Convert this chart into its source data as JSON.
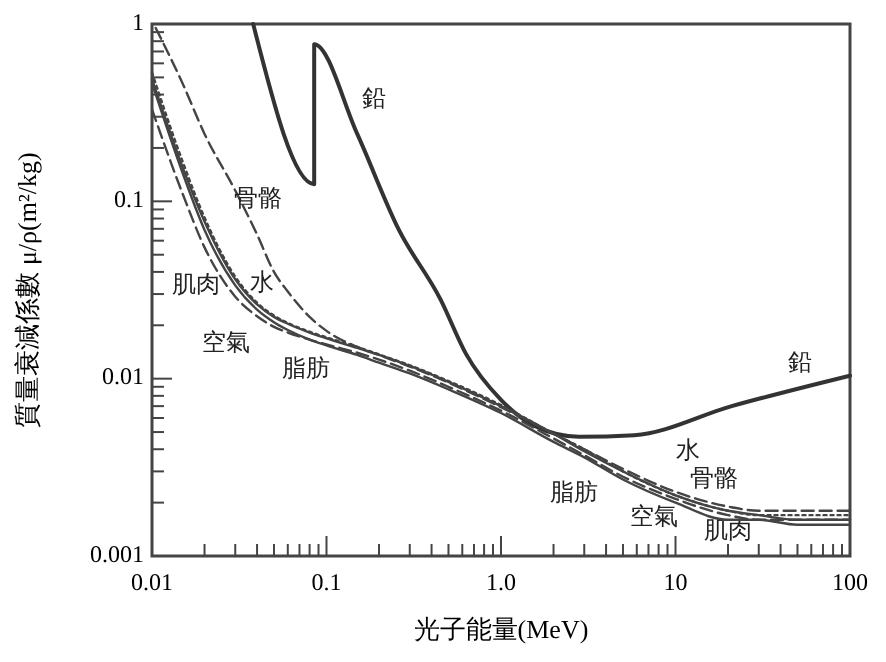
{
  "chart_data": {
    "type": "line",
    "xlabel": "光子能量(MeV)",
    "ylabel": "質量衰減係數 μ/ρ(m²/kg)",
    "log": "xy",
    "grid": false,
    "marker": "none",
    "xlim": [
      0.01,
      100
    ],
    "ylim": [
      0.001,
      1
    ],
    "xticks": [
      {
        "value": 0.01,
        "label": "0.01"
      },
      {
        "value": 0.02,
        "label": null
      },
      {
        "value": 0.03,
        "label": null
      },
      {
        "value": 0.04,
        "label": null
      },
      {
        "value": 0.05,
        "label": null
      },
      {
        "value": 0.06,
        "label": null
      },
      {
        "value": 0.07,
        "label": null
      },
      {
        "value": 0.08,
        "label": null
      },
      {
        "value": 0.09,
        "label": null
      },
      {
        "value": 0.1,
        "label": "0.1"
      },
      {
        "value": 0.2,
        "label": null
      },
      {
        "value": 0.3,
        "label": null
      },
      {
        "value": 0.4,
        "label": null
      },
      {
        "value": 0.5,
        "label": null
      },
      {
        "value": 0.6,
        "label": null
      },
      {
        "value": 0.7,
        "label": null
      },
      {
        "value": 0.8,
        "label": null
      },
      {
        "value": 0.9,
        "label": null
      },
      {
        "value": 1,
        "label": "1.0"
      },
      {
        "value": 2,
        "label": null
      },
      {
        "value": 3,
        "label": null
      },
      {
        "value": 4,
        "label": null
      },
      {
        "value": 5,
        "label": null
      },
      {
        "value": 6,
        "label": null
      },
      {
        "value": 7,
        "label": null
      },
      {
        "value": 8,
        "label": null
      },
      {
        "value": 9,
        "label": null
      },
      {
        "value": 10,
        "label": "10"
      },
      {
        "value": 20,
        "label": null
      },
      {
        "value": 30,
        "label": null
      },
      {
        "value": 40,
        "label": null
      },
      {
        "value": 50,
        "label": null
      },
      {
        "value": 60,
        "label": null
      },
      {
        "value": 70,
        "label": null
      },
      {
        "value": 80,
        "label": null
      },
      {
        "value": 90,
        "label": null
      },
      {
        "value": 100,
        "label": "100"
      }
    ],
    "yticks": [
      {
        "value": 0.001,
        "label": "0.001"
      },
      {
        "value": 0.002,
        "label": null
      },
      {
        "value": 0.003,
        "label": null
      },
      {
        "value": 0.004,
        "label": null
      },
      {
        "value": 0.005,
        "label": null
      },
      {
        "value": 0.006,
        "label": null
      },
      {
        "value": 0.007,
        "label": null
      },
      {
        "value": 0.008,
        "label": null
      },
      {
        "value": 0.009,
        "label": null
      },
      {
        "value": 0.01,
        "label": "0.01"
      },
      {
        "value": 0.02,
        "label": null
      },
      {
        "value": 0.03,
        "label": null
      },
      {
        "value": 0.04,
        "label": null
      },
      {
        "value": 0.05,
        "label": null
      },
      {
        "value": 0.06,
        "label": null
      },
      {
        "value": 0.07,
        "label": null
      },
      {
        "value": 0.08,
        "label": null
      },
      {
        "value": 0.09,
        "label": null
      },
      {
        "value": 0.1,
        "label": "0.1"
      },
      {
        "value": 0.2,
        "label": null
      },
      {
        "value": 0.3,
        "label": null
      },
      {
        "value": 0.4,
        "label": null
      },
      {
        "value": 0.5,
        "label": null
      },
      {
        "value": 0.6,
        "label": null
      },
      {
        "value": 0.7,
        "label": null
      },
      {
        "value": 0.8,
        "label": null
      },
      {
        "value": 0.9,
        "label": null
      },
      {
        "value": 1,
        "label": "1"
      }
    ],
    "x": [
      0.01,
      0.015,
      0.02,
      0.03,
      0.04,
      0.05,
      0.06,
      0.08,
      0.1,
      0.15,
      0.2,
      0.3,
      0.5,
      1,
      2,
      3,
      5,
      10,
      20,
      30,
      50,
      100
    ],
    "series": [
      {
        "name": "鉛",
        "color": "#333333",
        "line_style": "solid",
        "x": [
          0.038,
          0.085,
          0.085,
          0.15,
          0.26,
          0.45,
          0.63,
          1,
          1.57,
          2.8,
          5.8,
          21,
          100
        ],
        "values": [
          1,
          0.125,
          0.77,
          0.24,
          0.069,
          0.028,
          0.0138,
          0.0076,
          0.0054,
          0.0047,
          0.0048,
          0.007,
          0.0104
        ]
      },
      {
        "name": "骨骼",
        "color": "#444444",
        "line_style": "dashed",
        "x": [
          0.0105,
          0.015,
          0.02,
          0.03,
          0.04,
          0.05,
          0.06,
          0.08,
          0.1,
          0.15,
          0.2,
          0.3,
          0.5,
          1,
          2,
          3,
          5,
          10,
          20,
          30,
          50,
          100
        ],
        "values": [
          0.95,
          0.46,
          0.24,
          0.115,
          0.065,
          0.04,
          0.031,
          0.0223,
          0.0186,
          0.0151,
          0.0136,
          0.0117,
          0.0095,
          0.0069,
          0.0049,
          0.004,
          0.0031,
          0.0023,
          0.0019,
          0.0018,
          0.0018,
          0.0018
        ]
      },
      {
        "name": "水",
        "color": "#444444",
        "line_style": "dotted",
        "values": [
          0.533,
          0.167,
          0.081,
          0.0376,
          0.0268,
          0.0227,
          0.0206,
          0.0184,
          0.0171,
          0.0151,
          0.0137,
          0.0119,
          0.0097,
          0.0071,
          0.0049,
          0.004,
          0.003,
          0.0022,
          0.0018,
          0.0017,
          0.0017,
          0.0017
        ]
      },
      {
        "name": "肌肉",
        "color": "#444444",
        "line_style": "solid",
        "values": [
          0.49,
          0.155,
          0.077,
          0.0363,
          0.0262,
          0.0223,
          0.0204,
          0.0182,
          0.0169,
          0.0149,
          0.0136,
          0.0118,
          0.0096,
          0.007,
          0.0049,
          0.0039,
          0.003,
          0.0022,
          0.0018,
          0.0017,
          0.0016,
          0.0016
        ]
      },
      {
        "name": "空氣",
        "color": "#444444",
        "line_style": "solid",
        "values": [
          0.466,
          0.144,
          0.069,
          0.0336,
          0.0245,
          0.0208,
          0.0188,
          0.0166,
          0.0154,
          0.0136,
          0.0123,
          0.0107,
          0.0087,
          0.0064,
          0.0044,
          0.0036,
          0.0027,
          0.002,
          0.0016,
          0.0016,
          0.0015,
          0.0015
        ]
      },
      {
        "name": "脂肪",
        "color": "#444444",
        "line_style": "dashed",
        "values": [
          0.33,
          0.11,
          0.055,
          0.029,
          0.0225,
          0.0196,
          0.0182,
          0.0166,
          0.0156,
          0.014,
          0.0128,
          0.0111,
          0.009,
          0.0066,
          0.0046,
          0.0037,
          0.0028,
          0.0021,
          0.0017,
          0.0016,
          0.0016,
          0.0016
        ]
      }
    ]
  }
}
